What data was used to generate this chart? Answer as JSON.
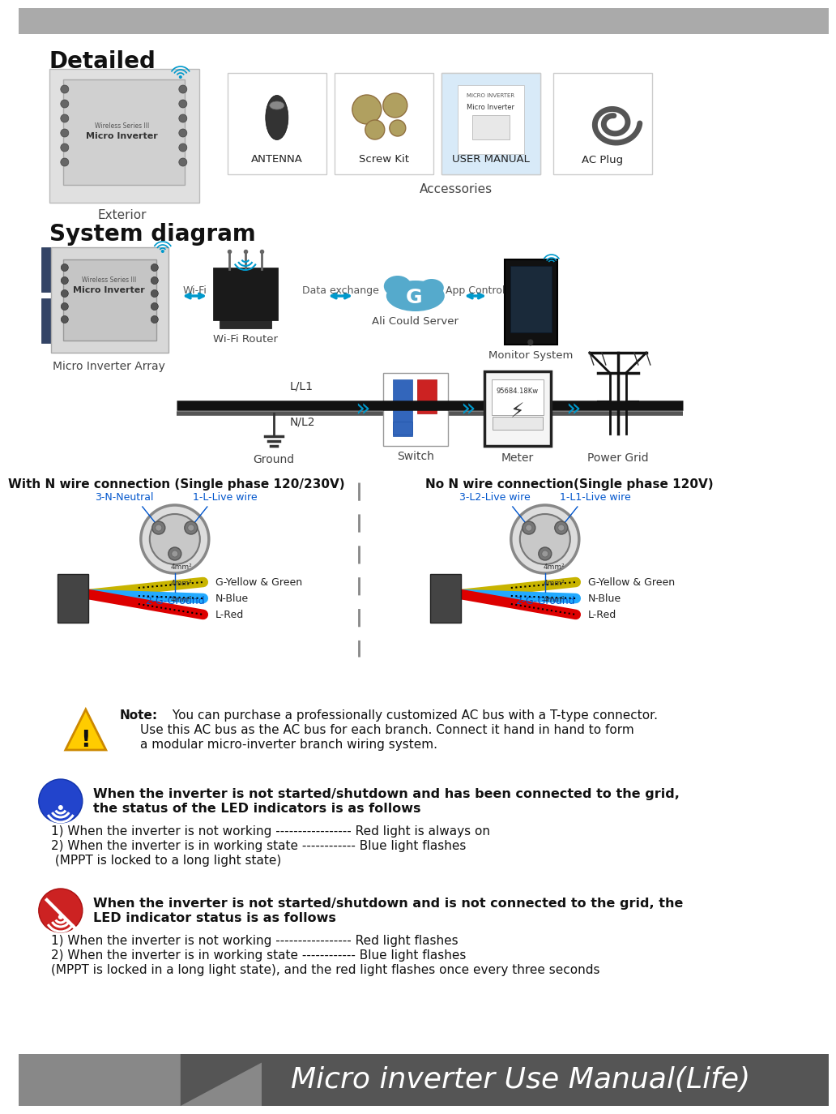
{
  "bg_color": "#ffffff",
  "section1_title": "Detailed",
  "section2_title": "System diagram",
  "exterior_label": "Exterior",
  "accessories_label": "Accessories",
  "acc_names": [
    "ANTENNA",
    "Screw Kit",
    "USER MANUAL",
    "AC Plug"
  ],
  "wifi_label": "Wi-Fi",
  "router_label": "Wi-Fi Router",
  "data_exchange_label": "Data exchange",
  "cloud_label": "Ali Could Server",
  "app_control_label": "App Control",
  "monitor_label": "Monitor System",
  "micro_inverter_array_label": "Micro Inverter Array",
  "ll1_label": "L/L1",
  "nl2_label": "N/L2",
  "ground_label": "Ground",
  "switch_label": "Switch",
  "meter_label": "Meter",
  "power_grid_label": "Power Grid",
  "wire_left_title": "With N wire connection (Single phase 120/230V)",
  "wire_right_title": "No N wire connection(Single phase 120V)",
  "left_labels": [
    "3-N-Neutral",
    "1-L-Live wire",
    "2-G-Ground"
  ],
  "right_labels": [
    "3-L2-Live wire",
    "1-L1-Live wire",
    "2-G-Ground"
  ],
  "note_bold": "Note:",
  "note_text1": " You can purchase a professionally customized AC bus with a T-type connector.",
  "note_text2": "Use this AC bus as the AC bus for each branch. Connect it hand in hand to form",
  "note_text3": "a modular micro-inverter branch wiring system.",
  "blue_title1": "When the inverter is not started/shutdown and has been connected to the grid,",
  "blue_title2": "the status of the LED indicators is as follows",
  "blue_item1": "1) When the inverter is not working ----------------- Red light is always on",
  "blue_item2": "2) When the inverter is in working state ------------ Blue light flashes",
  "blue_item3": " (MPPT is locked to a long light state)",
  "red_title1": "When the inverter is not started/shutdown and is not connected to the grid, the",
  "red_title2": "LED indicator status is as follows",
  "red_item1": "1) When the inverter is not working ----------------- Red light flashes",
  "red_item2": "2) When the inverter is in working state ------------ Blue light flashes",
  "red_item3": "(MPPT is locked in a long light state), and the red light flashes once every three seconds",
  "footer_text": "Micro inverter Use Manual(Life)",
  "wire_labels": [
    "G-Yellow & Green",
    "N-Blue",
    "L-Red"
  ],
  "wire_colors": [
    "#c8b400",
    "#22aaff",
    "#dd0000"
  ],
  "wire_size": "4mm²"
}
